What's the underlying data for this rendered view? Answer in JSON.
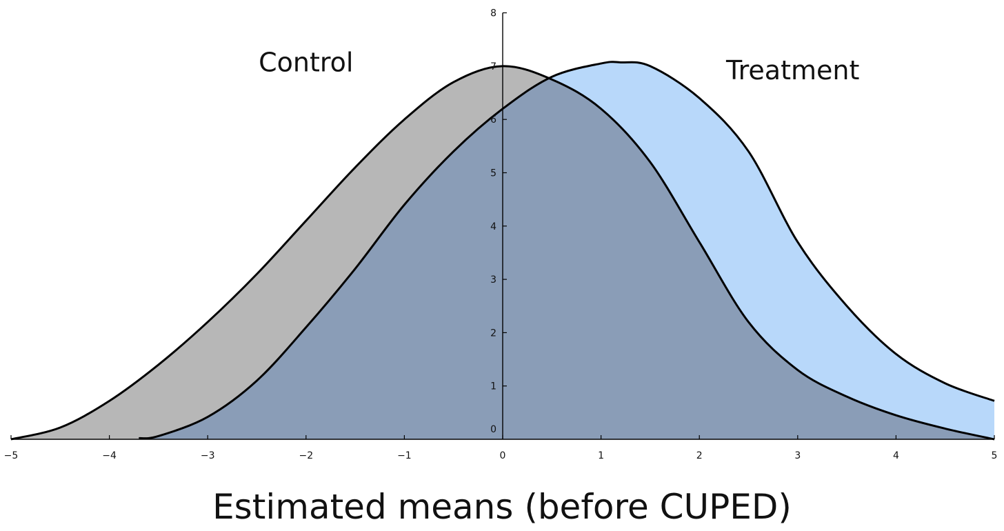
{
  "chart_data": {
    "type": "area",
    "title": "Estimated means (before CUPED)",
    "xlabel": "",
    "ylabel": "",
    "xlim": [
      -5,
      5
    ],
    "ylim": [
      0,
      8
    ],
    "x_ticks": [
      "−5",
      "−4",
      "−3",
      "−2",
      "−1",
      "0",
      "1",
      "2",
      "3",
      "4",
      "5"
    ],
    "y_ticks": [
      "0",
      "1",
      "2",
      "3",
      "4",
      "5",
      "6",
      "7",
      "8"
    ],
    "grid": false,
    "series": [
      {
        "name": "Control",
        "color": "#b7b7b7",
        "x": [
          -5,
          -4.5,
          -4,
          -3.5,
          -3,
          -2.5,
          -2,
          -1.5,
          -1,
          -0.5,
          0,
          0.5,
          1,
          1.5,
          2,
          2.5,
          3,
          3.5,
          4,
          4.5,
          5
        ],
        "y": [
          0.0,
          0.22,
          0.72,
          1.4,
          2.2,
          3.1,
          4.1,
          5.1,
          6.0,
          6.7,
          7.0,
          6.75,
          6.2,
          5.2,
          3.7,
          2.2,
          1.3,
          0.8,
          0.45,
          0.2,
          0.0
        ]
      },
      {
        "name": "Treatment",
        "color": "#b8d8fa",
        "x": [
          -3.7,
          -3.5,
          -3,
          -2.5,
          -2,
          -1.5,
          -1,
          -0.5,
          0,
          0.5,
          1,
          1.2,
          1.5,
          2,
          2.5,
          3,
          3.5,
          4,
          4.5,
          5
        ],
        "y": [
          0.02,
          0.06,
          0.42,
          1.1,
          2.1,
          3.2,
          4.4,
          5.4,
          6.2,
          6.8,
          7.05,
          7.07,
          7.0,
          6.4,
          5.4,
          3.7,
          2.5,
          1.6,
          1.05,
          0.72
        ]
      }
    ],
    "overlap_color": "#8a9db7",
    "series_labels": [
      {
        "text": "Control",
        "x": -2.0,
        "y": 6.9
      },
      {
        "text": "Treatment",
        "x": 2.95,
        "y": 6.75
      }
    ]
  }
}
